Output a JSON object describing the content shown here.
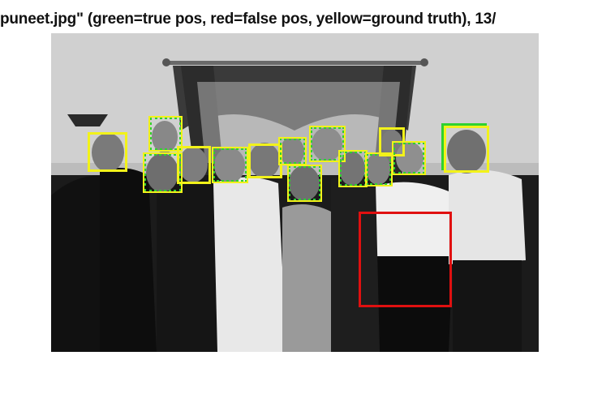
{
  "figure": {
    "title": "puneet.jpg\" (green=true pos, red=false pos, yellow=ground truth), 13/"
  },
  "legend_colors": {
    "true_positive": "#2fd12f",
    "false_positive": "#e01010",
    "ground_truth": "#f2f21a"
  },
  "detections": {
    "true_positive_count": 13,
    "false_positive_count": 1,
    "ground_truth_count": 14
  }
}
